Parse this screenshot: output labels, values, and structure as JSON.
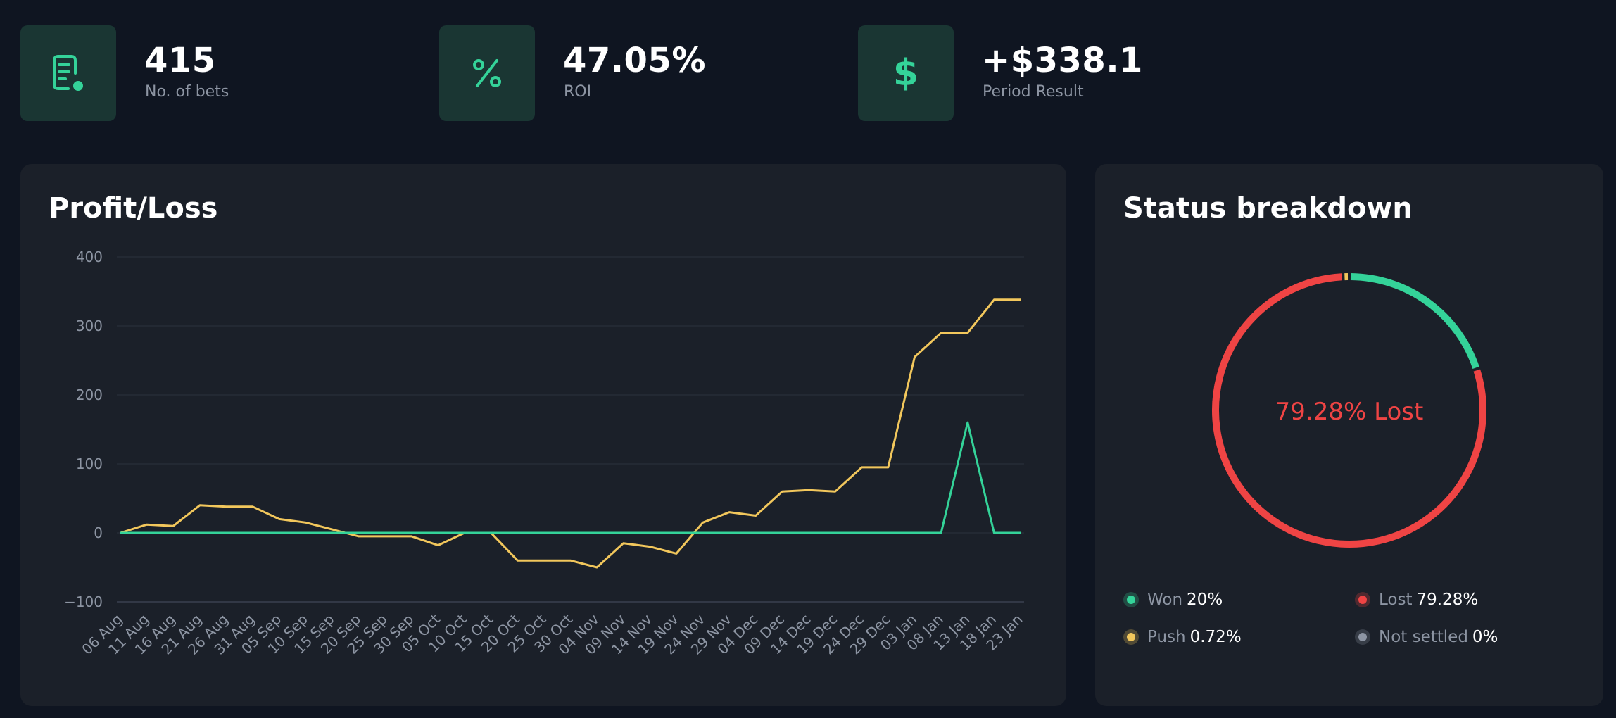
{
  "stats": [
    {
      "value": "415",
      "label": "No. of bets",
      "icon": "receipt-icon"
    },
    {
      "value": "47.05%",
      "label": "ROI",
      "icon": "percent-icon"
    },
    {
      "value": "+$338.1",
      "label": "Period Result",
      "icon": "dollar-icon"
    }
  ],
  "profit_loss": {
    "title": "Profit/Loss"
  },
  "status": {
    "title": "Status breakdown",
    "center_label": "79.28% Lost",
    "legend": [
      {
        "name": "Won",
        "value": "20%",
        "color": "#34d399"
      },
      {
        "name": "Lost",
        "value": "79.28%",
        "color": "#ef4444"
      },
      {
        "name": "Push",
        "value": "0.72%",
        "color": "#f2c75c"
      },
      {
        "name": "Not settled",
        "value": "0%",
        "color": "#8d95a3"
      }
    ]
  },
  "chart_data": [
    {
      "type": "line",
      "title": "Profit/Loss",
      "ylim": [
        -100,
        400
      ],
      "yticks": [
        "400",
        "300",
        "200",
        "100",
        "0",
        "−100"
      ],
      "ytick_values": [
        400,
        300,
        200,
        100,
        0,
        -100
      ],
      "grid": true,
      "x": [
        "06 Aug",
        "11 Aug",
        "16 Aug",
        "21 Aug",
        "26 Aug",
        "31 Aug",
        "05 Sep",
        "10 Sep",
        "15 Sep",
        "20 Sep",
        "25 Sep",
        "30 Sep",
        "05 Oct",
        "10 Oct",
        "15 Oct",
        "20 Oct",
        "25 Oct",
        "30 Oct",
        "04 Nov",
        "09 Nov",
        "14 Nov",
        "19 Nov",
        "24 Nov",
        "29 Nov",
        "04 Dec",
        "09 Dec",
        "14 Dec",
        "19 Dec",
        "24 Dec",
        "29 Dec",
        "03 Jan",
        "08 Jan",
        "13 Jan",
        "18 Jan",
        "23 Jan"
      ],
      "series": [
        {
          "color": "#f2c75c",
          "values": [
            0,
            12,
            10,
            40,
            38,
            38,
            20,
            15,
            5,
            -5,
            -5,
            -5,
            -18,
            0,
            0,
            -40,
            -40,
            -40,
            -50,
            -15,
            -20,
            -30,
            15,
            30,
            25,
            60,
            62,
            60,
            95,
            95,
            255,
            290,
            290,
            338,
            338
          ]
        },
        {
          "color": "#34d399",
          "values": [
            0,
            0,
            0,
            0,
            0,
            0,
            0,
            0,
            0,
            0,
            0,
            0,
            0,
            0,
            0,
            0,
            0,
            0,
            0,
            0,
            0,
            0,
            0,
            0,
            0,
            0,
            0,
            0,
            0,
            0,
            0,
            0,
            160,
            0,
            0
          ]
        }
      ]
    },
    {
      "type": "pie",
      "title": "Status breakdown",
      "categories": [
        "Won",
        "Lost",
        "Push",
        "Not settled"
      ],
      "values": [
        20,
        79.28,
        0.72,
        0
      ]
    }
  ]
}
